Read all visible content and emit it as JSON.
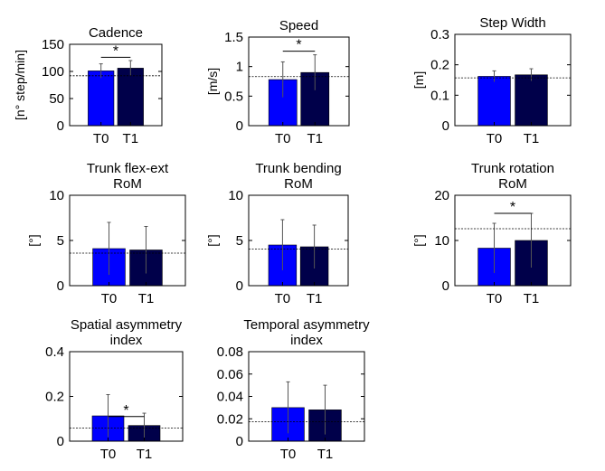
{
  "chart_data": [
    {
      "type": "bar",
      "title": [
        "Cadence"
      ],
      "ylabel": "[n° step/min]",
      "categories": [
        "T0",
        "T1"
      ],
      "values": [
        101,
        106
      ],
      "errors": [
        13,
        14
      ],
      "colors": [
        "#0000ff",
        "#00004a"
      ],
      "ylim": [
        0,
        150
      ],
      "yticks": [
        0,
        50,
        100,
        150
      ],
      "ytick_labels": [
        "0",
        "50",
        "100",
        "150"
      ],
      "reference_line": 92,
      "significance": "*",
      "significance_y": 126
    },
    {
      "type": "bar",
      "title": [
        "Speed"
      ],
      "ylabel": "[m/s]",
      "categories": [
        "T0",
        "T1"
      ],
      "values": [
        0.78,
        0.9
      ],
      "errors": [
        0.3,
        0.3
      ],
      "colors": [
        "#0000ff",
        "#00004a"
      ],
      "ylim": [
        0,
        1.5
      ],
      "yticks": [
        0,
        0.5,
        1,
        1.5
      ],
      "ytick_labels": [
        "0",
        "0.5",
        "1",
        "1.5"
      ],
      "reference_line": 0.83,
      "significance": "*",
      "significance_y": 1.26
    },
    {
      "type": "bar",
      "title": [
        "Step Width"
      ],
      "ylabel": "[m]",
      "categories": [
        "T0",
        "T1"
      ],
      "values": [
        0.162,
        0.167
      ],
      "errors": [
        0.018,
        0.02
      ],
      "colors": [
        "#0000ff",
        "#00004a"
      ],
      "ylim": [
        0,
        0.3
      ],
      "yticks": [
        0,
        0.1,
        0.2,
        0.3
      ],
      "ytick_labels": [
        "0",
        "0.1",
        "0.2",
        "0.3"
      ],
      "reference_line": 0.157,
      "significance": "",
      "significance_y": null
    },
    {
      "type": "bar",
      "title": [
        "Trunk flex-ext",
        "RoM"
      ],
      "ylabel": "[°]",
      "categories": [
        "T0",
        "T1"
      ],
      "values": [
        4.1,
        3.95
      ],
      "errors": [
        2.9,
        2.6
      ],
      "colors": [
        "#0000ff",
        "#00004a"
      ],
      "ylim": [
        0,
        10
      ],
      "yticks": [
        0,
        5,
        10
      ],
      "ytick_labels": [
        "0",
        "5",
        "10"
      ],
      "reference_line": 3.6,
      "significance": "",
      "significance_y": null
    },
    {
      "type": "bar",
      "title": [
        "Trunk bending",
        "RoM"
      ],
      "ylabel": "[°]",
      "categories": [
        "T0",
        "T1"
      ],
      "values": [
        4.5,
        4.3
      ],
      "errors": [
        2.8,
        2.4
      ],
      "colors": [
        "#0000ff",
        "#00004a"
      ],
      "ylim": [
        0,
        10
      ],
      "yticks": [
        0,
        5,
        10
      ],
      "ytick_labels": [
        "0",
        "5",
        "10"
      ],
      "reference_line": 4.05,
      "significance": "",
      "significance_y": null
    },
    {
      "type": "bar",
      "title": [
        "Trunk rotation",
        "RoM"
      ],
      "ylabel": "[°]",
      "categories": [
        "T0",
        "T1"
      ],
      "values": [
        8.3,
        10.0
      ],
      "errors": [
        5.5,
        6.0
      ],
      "colors": [
        "#0000ff",
        "#00004a"
      ],
      "ylim": [
        0,
        20
      ],
      "yticks": [
        0,
        10,
        20
      ],
      "ytick_labels": [
        "0",
        "10",
        "20"
      ],
      "reference_line": 12.6,
      "significance": "*",
      "significance_y": 16.0
    },
    {
      "type": "bar",
      "title": [
        "Spatial asymmetry",
        "index"
      ],
      "ylabel": "",
      "categories": [
        "T0",
        "T1"
      ],
      "values": [
        0.113,
        0.07
      ],
      "errors": [
        0.095,
        0.055
      ],
      "colors": [
        "#0000ff",
        "#00004a"
      ],
      "ylim": [
        0,
        0.4
      ],
      "yticks": [
        0,
        0.2,
        0.4
      ],
      "ytick_labels": [
        "0",
        "0.2",
        "0.4"
      ],
      "reference_line": 0.058,
      "significance": "*",
      "significance_y": 0.11
    },
    {
      "type": "bar",
      "title": [
        "Temporal asymmetry",
        "index"
      ],
      "ylabel": "",
      "categories": [
        "T0",
        "T1"
      ],
      "values": [
        0.03,
        0.028
      ],
      "errors": [
        0.023,
        0.022
      ],
      "colors": [
        "#0000ff",
        "#00004a"
      ],
      "ylim": [
        0,
        0.08
      ],
      "yticks": [
        0,
        0.02,
        0.04,
        0.06,
        0.08
      ],
      "ytick_labels": [
        "0",
        "0.02",
        "0.04",
        "0.06",
        "0.08"
      ],
      "reference_line": 0.0175,
      "significance": "",
      "significance_y": null
    }
  ]
}
